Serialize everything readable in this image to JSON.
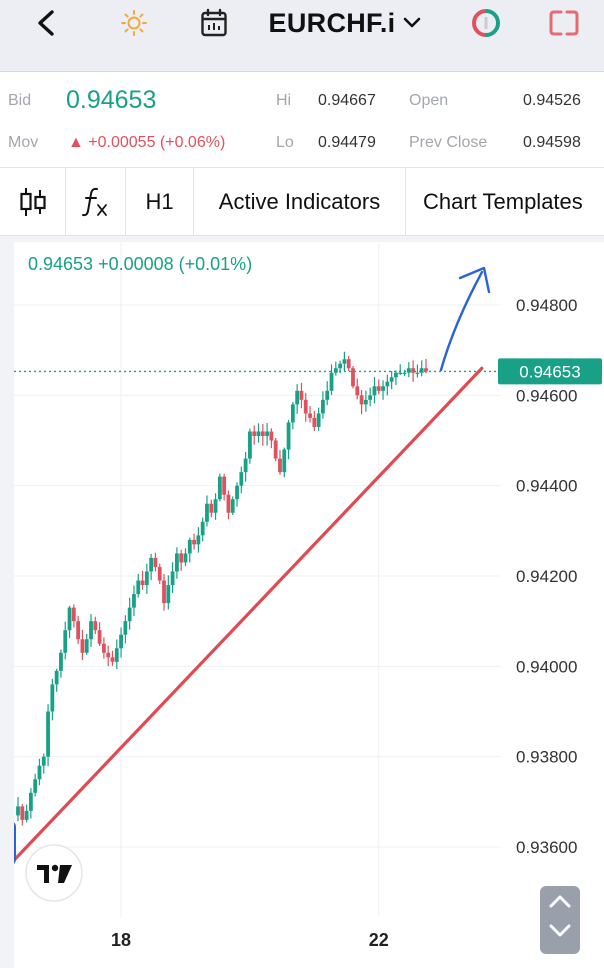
{
  "header": {
    "symbol": "EURCHF.i",
    "icons": {
      "back": "chevron-left-icon",
      "theme": "sun-icon",
      "calendar": "calendar-icon",
      "symbol_dropdown": "chevron-down-icon",
      "logo": "broker-logo-icon",
      "layout": "layout-toggle-icon"
    }
  },
  "quote": {
    "bid_label": "Bid",
    "bid_value": "0.94653",
    "mov_label": "Mov",
    "mov_value": "▲ +0.00055 (+0.06%)",
    "hi_label": "Hi",
    "hi_value": "0.94667",
    "lo_label": "Lo",
    "lo_value": "0.94479",
    "open_label": "Open",
    "open_value": "0.94526",
    "prev_close_label": "Prev Close",
    "prev_close_value": "0.94598"
  },
  "toolbar": {
    "chart_type_icon": "candlestick-icon",
    "indicator_icon": "function-fx-icon",
    "timeframe": "H1",
    "active_indicators": "Active Indicators",
    "chart_templates": "Chart Templates"
  },
  "colors": {
    "up": "#19a187",
    "down": "#e0515e",
    "trendline": "#e04a52",
    "arrow": "#2b63d6",
    "price_tag": "#19a187"
  },
  "chart_data": {
    "type": "candlestick",
    "header_text": "0.94653  +0.00008 (+0.01%)",
    "current_price": 0.94653,
    "current_price_label": "0.94653",
    "y_ticks": [
      0.948,
      0.946,
      0.944,
      0.942,
      0.94,
      0.938,
      0.936
    ],
    "y_tick_labels": [
      "0.94800",
      "0.94600",
      "0.94400",
      "0.94200",
      "0.94000",
      "0.93800",
      "0.93600"
    ],
    "ylim": [
      0.9349,
      0.9498
    ],
    "x_tick_labels": [
      "18",
      "22"
    ],
    "x_tick_index": [
      24,
      84
    ],
    "candle_count": 96,
    "trendline": {
      "from": [
        -1,
        0.9357
      ],
      "to": [
        108,
        0.9466
      ]
    },
    "closes": [
      0.9369,
      0.9366,
      0.9368,
      0.9372,
      0.9375,
      0.9378,
      0.938,
      0.939,
      0.9396,
      0.9399,
      0.9403,
      0.9408,
      0.9413,
      0.941,
      0.9406,
      0.9403,
      0.9406,
      0.941,
      0.9408,
      0.9405,
      0.9403,
      0.9402,
      0.9401,
      0.9404,
      0.9407,
      0.941,
      0.9413,
      0.9416,
      0.9419,
      0.9418,
      0.9421,
      0.9424,
      0.9422,
      0.9419,
      0.9414,
      0.9418,
      0.9421,
      0.9425,
      0.9423,
      0.9425,
      0.9428,
      0.9427,
      0.9429,
      0.9432,
      0.9436,
      0.9434,
      0.9437,
      0.9442,
      0.9438,
      0.9434,
      0.9437,
      0.944,
      0.9443,
      0.9446,
      0.9452,
      0.9451,
      0.9452,
      0.9451,
      0.9452,
      0.945,
      0.9446,
      0.9443,
      0.9448,
      0.9454,
      0.9458,
      0.9461,
      0.9459,
      0.9456,
      0.9455,
      0.9453,
      0.9456,
      0.9459,
      0.9461,
      0.9465,
      0.9466,
      0.9467,
      0.9468,
      0.9466,
      0.9462,
      0.946,
      0.9458,
      0.9459,
      0.946,
      0.9462,
      0.9461,
      0.9462,
      0.9463,
      0.9464,
      0.9465,
      0.9465,
      0.9465,
      0.9466,
      0.9465,
      0.9465,
      0.9466,
      0.94653
    ]
  }
}
